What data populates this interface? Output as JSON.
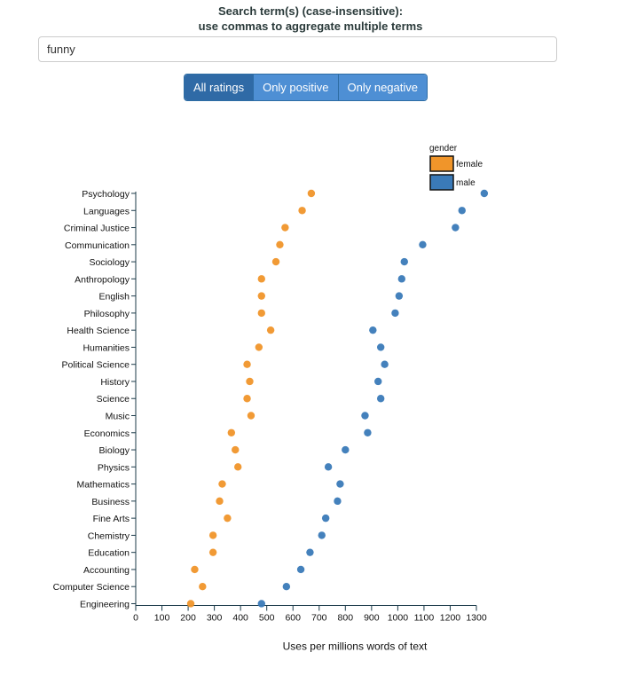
{
  "search": {
    "title_line1": "Search term(s) (case-insensitive):",
    "title_line2": "use commas to aggregate multiple terms",
    "value": "funny"
  },
  "filters": {
    "buttons": [
      {
        "label": "All ratings",
        "active": true
      },
      {
        "label": "Only positive",
        "active": false
      },
      {
        "label": "Only negative",
        "active": false
      }
    ]
  },
  "chart_data": {
    "type": "scatter",
    "categories": [
      "Psychology",
      "Languages",
      "Criminal Justice",
      "Communication",
      "Sociology",
      "Anthropology",
      "English",
      "Philosophy",
      "Health Science",
      "Humanities",
      "Political Science",
      "History",
      "Science",
      "Music",
      "Economics",
      "Biology",
      "Physics",
      "Mathematics",
      "Business",
      "Fine Arts",
      "Chemistry",
      "Education",
      "Accounting",
      "Computer Science",
      "Engineering"
    ],
    "series": [
      {
        "name": "female",
        "color": "#f0952a",
        "values": [
          670,
          635,
          570,
          550,
          535,
          480,
          480,
          480,
          515,
          470,
          425,
          435,
          425,
          440,
          365,
          380,
          390,
          330,
          320,
          350,
          295,
          295,
          225,
          255,
          210
        ]
      },
      {
        "name": "male",
        "color": "#3a7ab8",
        "values": [
          1330,
          1245,
          1220,
          1095,
          1025,
          1015,
          1005,
          990,
          905,
          935,
          950,
          925,
          935,
          875,
          885,
          800,
          735,
          780,
          770,
          725,
          710,
          665,
          630,
          575,
          480
        ]
      }
    ],
    "xlabel": "Uses per millions words of text",
    "xlim": [
      0,
      1300
    ],
    "xticks": [
      0,
      100,
      200,
      300,
      400,
      500,
      600,
      700,
      800,
      900,
      1000,
      1100,
      1200,
      1300
    ],
    "legend": {
      "title": "gender",
      "position": "top-right"
    },
    "grid": false
  }
}
